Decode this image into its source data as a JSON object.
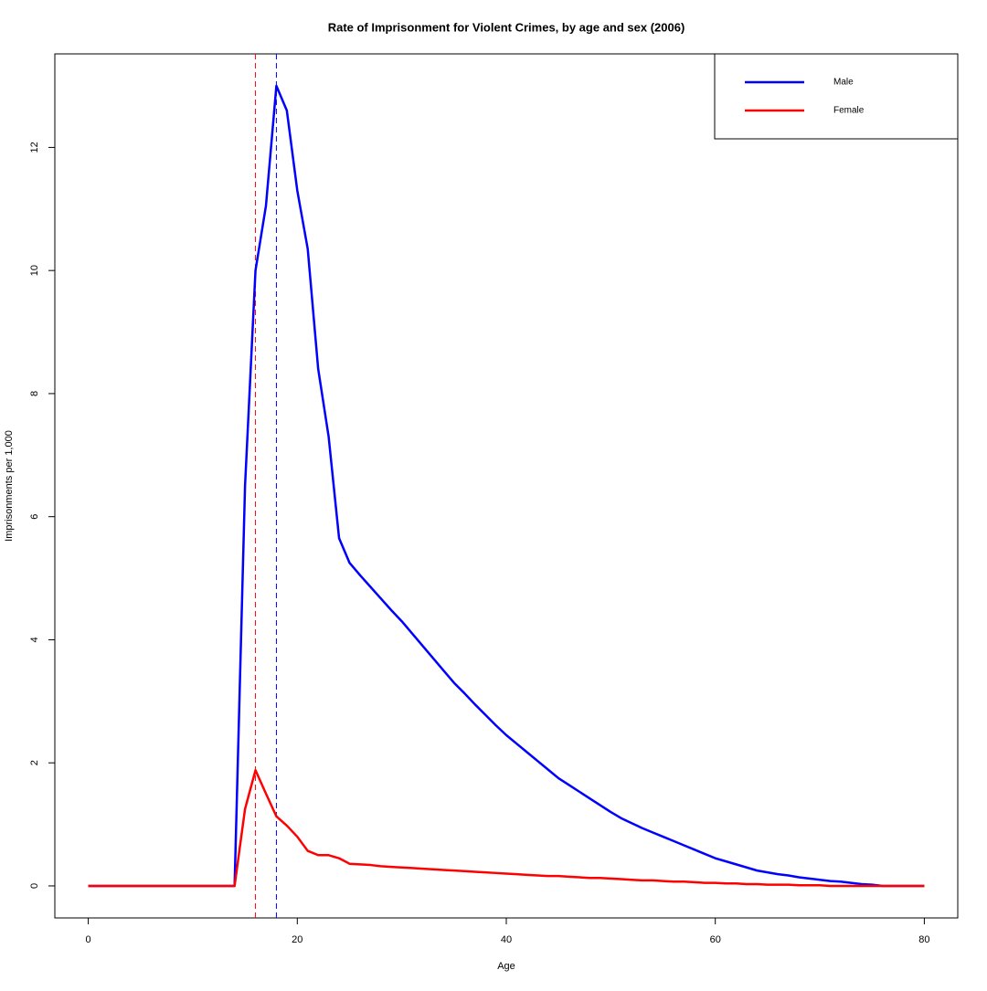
{
  "chart_data": {
    "type": "line",
    "title": "Rate of Imprisonment for Violent Crimes, by age and sex (2006)",
    "x_label": "Age",
    "y_label": "Imprisonments per 1,000",
    "x": [
      0,
      1,
      2,
      3,
      4,
      5,
      6,
      7,
      8,
      9,
      10,
      11,
      12,
      13,
      14,
      15,
      16,
      17,
      18,
      19,
      20,
      21,
      22,
      23,
      24,
      25,
      26,
      27,
      28,
      29,
      30,
      31,
      32,
      33,
      34,
      35,
      36,
      37,
      38,
      39,
      40,
      41,
      42,
      43,
      44,
      45,
      46,
      47,
      48,
      49,
      50,
      51,
      52,
      53,
      54,
      55,
      56,
      57,
      58,
      59,
      60,
      61,
      62,
      63,
      64,
      65,
      66,
      67,
      68,
      69,
      70,
      71,
      72,
      73,
      74,
      75,
      76,
      77,
      78,
      79,
      80
    ],
    "series": [
      {
        "name": "Male",
        "color": "#0000ff",
        "values": [
          0,
          0,
          0,
          0,
          0,
          0,
          0,
          0,
          0,
          0,
          0,
          0,
          0,
          0,
          0,
          6.5,
          10.0,
          11.05,
          13.0,
          12.6,
          11.3,
          10.35,
          8.4,
          7.3,
          5.65,
          5.25,
          5.05,
          4.86,
          4.67,
          4.48,
          4.3,
          4.1,
          3.9,
          3.7,
          3.5,
          3.3,
          3.13,
          2.95,
          2.78,
          2.61,
          2.45,
          2.31,
          2.17,
          2.03,
          1.89,
          1.75,
          1.64,
          1.53,
          1.42,
          1.31,
          1.2,
          1.1,
          1.02,
          0.94,
          0.87,
          0.8,
          0.73,
          0.66,
          0.59,
          0.52,
          0.45,
          0.4,
          0.35,
          0.3,
          0.25,
          0.22,
          0.19,
          0.17,
          0.14,
          0.12,
          0.1,
          0.08,
          0.07,
          0.05,
          0.03,
          0.02,
          0,
          0,
          0,
          0,
          0
        ]
      },
      {
        "name": "Female",
        "color": "#ff0000",
        "values": [
          0,
          0,
          0,
          0,
          0,
          0,
          0,
          0,
          0,
          0,
          0,
          0,
          0,
          0,
          0,
          1.25,
          1.88,
          1.5,
          1.13,
          0.98,
          0.8,
          0.57,
          0.5,
          0.5,
          0.45,
          0.36,
          0.35,
          0.34,
          0.32,
          0.31,
          0.3,
          0.29,
          0.28,
          0.27,
          0.26,
          0.25,
          0.24,
          0.23,
          0.22,
          0.21,
          0.2,
          0.19,
          0.18,
          0.17,
          0.16,
          0.16,
          0.15,
          0.14,
          0.13,
          0.13,
          0.12,
          0.11,
          0.1,
          0.09,
          0.09,
          0.08,
          0.07,
          0.07,
          0.06,
          0.05,
          0.05,
          0.04,
          0.04,
          0.03,
          0.03,
          0.02,
          0.02,
          0.02,
          0.01,
          0.01,
          0.01,
          0,
          0,
          0,
          0,
          0,
          0,
          0,
          0,
          0,
          0
        ]
      }
    ],
    "reference_lines": [
      {
        "x": 16,
        "color": "#ff0000"
      },
      {
        "x": 18,
        "color": "#0000ff"
      }
    ],
    "xlim": [
      -3.2,
      83.2
    ],
    "xticks": [
      0,
      20,
      40,
      60,
      80
    ],
    "ylim": [
      -0.52,
      13.52
    ],
    "yticks": [
      0,
      2,
      4,
      6,
      8,
      10,
      12
    ],
    "legend": "top-right"
  }
}
